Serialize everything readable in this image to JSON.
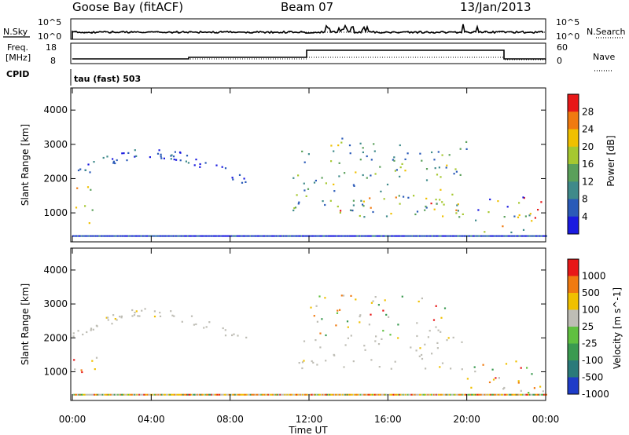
{
  "header": {
    "station": "Goose Bay (fitACF)",
    "beam": "Beam 07",
    "date": "13/Jan/2013"
  },
  "params": {
    "nsky_label": "N.Sky",
    "nsearch_label": "N.Search",
    "freq_label_line1": "Freq.",
    "freq_label_line2": "[MHz]",
    "nave_label": "Nave",
    "cpid_label": "CPID",
    "cpid_value": "tau (fast) 503",
    "noise_ticks": [
      "10^5",
      "10^0"
    ],
    "freq_ticks": [
      "18",
      "8"
    ],
    "nave_ticks": [
      "60",
      "0"
    ]
  },
  "colors": {
    "background": "#ffffff",
    "axis": "#000000",
    "ground_scatter": "#bebdb5"
  },
  "chart_data": [
    {
      "type": "heatmap",
      "title": "",
      "ylabel": "Slant Range [km]",
      "xlabel": "",
      "xticks": [
        "00:00",
        "04:00",
        "08:00",
        "12:00",
        "16:00",
        "20:00",
        "00:00"
      ],
      "yticks": [
        "1000",
        "2000",
        "3000",
        "4000"
      ],
      "ylim": [
        200,
        4600
      ],
      "xlim_hours": [
        0,
        24
      ],
      "colorbar": {
        "label": "Power [dB]",
        "ticks": [
          "4",
          "8",
          "12",
          "16",
          "20",
          "24",
          "28"
        ],
        "colors": [
          "#1a1ae0",
          "#2a5ab8",
          "#3f8a8a",
          "#5aa05a",
          "#a6c830",
          "#f0c000",
          "#f07a10",
          "#e81818"
        ]
      },
      "scatter_regions": [
        {
          "t0": 0.0,
          "t1": 1.2,
          "r0": 700,
          "r1": 1800,
          "level": "high"
        },
        {
          "t0": 0.0,
          "t1": 9.0,
          "r0": 2000,
          "r1": 3100,
          "level": "low"
        },
        {
          "t0": 11.0,
          "t1": 20.0,
          "r0": 900,
          "r1": 3200,
          "level": "mid"
        },
        {
          "t0": 13.0,
          "t1": 19.5,
          "r0": 1000,
          "r1": 1600,
          "level": "high"
        },
        {
          "t0": 20.0,
          "t1": 24.0,
          "r0": 400,
          "r1": 1500,
          "level": "mixed"
        }
      ]
    },
    {
      "type": "heatmap",
      "title": "",
      "ylabel": "Slant Range [km]",
      "xlabel": "Time UT",
      "xticks": [
        "00:00",
        "04:00",
        "08:00",
        "12:00",
        "16:00",
        "20:00",
        "00:00"
      ],
      "yticks": [
        "1000",
        "2000",
        "3000",
        "4000"
      ],
      "ylim": [
        200,
        4600
      ],
      "xlim_hours": [
        0,
        24
      ],
      "colorbar": {
        "label": "Velocity [m s^-1]",
        "ticks": [
          "1000",
          "500",
          "100",
          "25",
          "-25",
          "-100",
          "-500",
          "-1000"
        ],
        "colors": [
          "#1e3cc8",
          "#2a7a7a",
          "#3a9a50",
          "#60c040",
          "#bebdb5",
          "#f0c000",
          "#f07a10",
          "#e81818"
        ]
      },
      "scatter_regions": [
        {
          "t0": 0.0,
          "t1": 1.2,
          "r0": 700,
          "r1": 1800,
          "level": "mixed"
        },
        {
          "t0": 0.0,
          "t1": 9.0,
          "r0": 2000,
          "r1": 3000,
          "level": "ground"
        },
        {
          "t0": 11.0,
          "t1": 20.0,
          "r0": 1100,
          "r1": 2100,
          "level": "ground"
        },
        {
          "t0": 12.0,
          "t1": 19.0,
          "r0": 2100,
          "r1": 3300,
          "level": "mixed"
        },
        {
          "t0": 20.0,
          "t1": 24.0,
          "r0": 400,
          "r1": 1500,
          "level": "mixed"
        }
      ]
    }
  ]
}
